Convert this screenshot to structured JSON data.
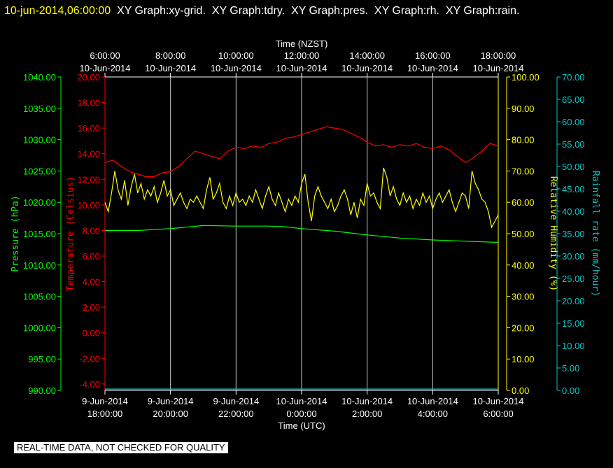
{
  "header": {
    "datetime": "10-jun-2014,06:00:00",
    "graph_labels": [
      "XY Graph:xy-grid.",
      "XY Graph:tdry.",
      "XY Graph:pres.",
      "XY Graph:rh.",
      "XY Graph:rain."
    ]
  },
  "footer": {
    "notice": "REAL-TIME DATA, NOT CHECKED FOR QUALITY"
  },
  "chart_data": {
    "type": "line",
    "top_axis": {
      "label": "Time (NZST)",
      "ticks": [
        {
          "time": "6:00:00",
          "date": "10-Jun-2014"
        },
        {
          "time": "8:00:00",
          "date": "10-Jun-2014"
        },
        {
          "time": "10:00:00",
          "date": "10-Jun-2014"
        },
        {
          "time": "12:00:00",
          "date": "10-Jun-2014"
        },
        {
          "time": "14:00:00",
          "date": "10-Jun-2014"
        },
        {
          "time": "16:00:00",
          "date": "10-Jun-2014"
        },
        {
          "time": "18:00:00",
          "date": "10-Jun-2014"
        }
      ]
    },
    "bottom_axis": {
      "label": "Time (UTC)",
      "ticks": [
        {
          "date": "9-Jun-2014",
          "time": "18:00:00"
        },
        {
          "date": "9-Jun-2014",
          "time": "20:00:00"
        },
        {
          "date": "9-Jun-2014",
          "time": "22:00:00"
        },
        {
          "date": "10-Jun-2014",
          "time": "0:00:00"
        },
        {
          "date": "10-Jun-2014",
          "time": "2:00:00"
        },
        {
          "date": "10-Jun-2014",
          "time": "4:00:00"
        },
        {
          "date": "10-Jun-2014",
          "time": "6:00:00"
        }
      ]
    },
    "x_hours": [
      0,
      2,
      4,
      6,
      8,
      10,
      12
    ],
    "vgrid_hours": [
      2,
      4,
      6,
      8,
      10
    ],
    "pressure_axis": {
      "label": "Pressure (hPa)",
      "color": "#00ff00",
      "range": [
        990,
        1040
      ],
      "ticks": [
        "990.00",
        "995.00",
        "1000.00",
        "1005.00",
        "1010.00",
        "1015.00",
        "1020.00",
        "1025.00",
        "1030.00",
        "1035.00",
        "1040.00"
      ]
    },
    "temperature_axis": {
      "label": "Temperature (Celsius)",
      "color": "#ff0000",
      "range": [
        -4.5,
        20
      ],
      "ticks": [
        "-4.00",
        "-2.00",
        "0.00",
        "2.00",
        "4.00",
        "6.00",
        "8.00",
        "10.00",
        "12.00",
        "14.00",
        "16.00",
        "18.00",
        "20.00"
      ]
    },
    "humidity_axis": {
      "label": "Relative Humidity (%)",
      "color": "#ffff00",
      "range": [
        0,
        100
      ],
      "ticks": [
        "0.00",
        "10.00",
        "20.00",
        "30.00",
        "40.00",
        "50.00",
        "60.00",
        "70.00",
        "80.00",
        "90.00",
        "100.00"
      ]
    },
    "rain_axis": {
      "label": "Rainfall rate (mm/hour)",
      "color": "#00c8c8",
      "range": [
        0,
        70
      ],
      "ticks": [
        "0.00",
        "5.00",
        "10.00",
        "15.00",
        "20.00",
        "25.00",
        "30.00",
        "35.00",
        "40.00",
        "45.00",
        "50.00",
        "55.00",
        "60.00",
        "65.00",
        "70.00"
      ]
    },
    "series": [
      {
        "name": "tdry",
        "color": "#ff0000",
        "axis": "temperature_axis",
        "points": [
          [
            0,
            13.3
          ],
          [
            0.25,
            13.5
          ],
          [
            0.5,
            13.0
          ],
          [
            0.75,
            12.6
          ],
          [
            1.0,
            12.4
          ],
          [
            1.25,
            12.2
          ],
          [
            1.5,
            12.2
          ],
          [
            1.75,
            12.5
          ],
          [
            2.0,
            12.6
          ],
          [
            2.25,
            13.0
          ],
          [
            2.5,
            13.6
          ],
          [
            2.75,
            14.2
          ],
          [
            3.0,
            14.0
          ],
          [
            3.25,
            13.8
          ],
          [
            3.5,
            13.6
          ],
          [
            3.75,
            14.2
          ],
          [
            4.0,
            14.5
          ],
          [
            4.25,
            14.4
          ],
          [
            4.5,
            14.6
          ],
          [
            4.75,
            14.5
          ],
          [
            5.0,
            14.8
          ],
          [
            5.25,
            14.9
          ],
          [
            5.5,
            15.2
          ],
          [
            5.75,
            15.3
          ],
          [
            6.0,
            15.5
          ],
          [
            6.25,
            15.7
          ],
          [
            6.5,
            15.9
          ],
          [
            6.75,
            16.1
          ],
          [
            7.0,
            16.0
          ],
          [
            7.25,
            15.9
          ],
          [
            7.5,
            15.6
          ],
          [
            7.75,
            15.3
          ],
          [
            8.0,
            14.9
          ],
          [
            8.25,
            14.6
          ],
          [
            8.5,
            14.7
          ],
          [
            8.75,
            14.5
          ],
          [
            9.0,
            14.7
          ],
          [
            9.25,
            14.6
          ],
          [
            9.5,
            14.8
          ],
          [
            9.75,
            14.5
          ],
          [
            10.0,
            14.4
          ],
          [
            10.25,
            14.6
          ],
          [
            10.5,
            14.3
          ],
          [
            10.75,
            13.8
          ],
          [
            11.0,
            13.3
          ],
          [
            11.25,
            13.7
          ],
          [
            11.5,
            14.2
          ],
          [
            11.75,
            14.8
          ],
          [
            12.0,
            14.6
          ]
        ]
      },
      {
        "name": "rh",
        "color": "#ffff00",
        "axis": "humidity_axis",
        "points": [
          [
            0,
            60
          ],
          [
            0.1,
            57
          ],
          [
            0.2,
            63
          ],
          [
            0.3,
            70
          ],
          [
            0.4,
            64
          ],
          [
            0.5,
            61
          ],
          [
            0.6,
            67
          ],
          [
            0.7,
            59
          ],
          [
            0.8,
            65
          ],
          [
            0.9,
            69
          ],
          [
            1.0,
            63
          ],
          [
            1.1,
            66
          ],
          [
            1.2,
            61
          ],
          [
            1.3,
            64
          ],
          [
            1.4,
            62
          ],
          [
            1.5,
            65
          ],
          [
            1.6,
            60
          ],
          [
            1.7,
            63
          ],
          [
            1.8,
            67
          ],
          [
            1.9,
            62
          ],
          [
            2.0,
            64
          ],
          [
            2.1,
            59
          ],
          [
            2.2,
            61
          ],
          [
            2.3,
            63
          ],
          [
            2.4,
            60
          ],
          [
            2.5,
            58
          ],
          [
            2.6,
            61
          ],
          [
            2.7,
            60
          ],
          [
            2.8,
            62
          ],
          [
            2.9,
            60
          ],
          [
            3.0,
            58
          ],
          [
            3.1,
            64
          ],
          [
            3.2,
            68
          ],
          [
            3.3,
            61
          ],
          [
            3.4,
            63
          ],
          [
            3.5,
            66
          ],
          [
            3.6,
            60
          ],
          [
            3.7,
            58
          ],
          [
            3.8,
            62
          ],
          [
            3.9,
            59
          ],
          [
            4.0,
            63
          ],
          [
            4.1,
            60
          ],
          [
            4.2,
            61
          ],
          [
            4.3,
            59
          ],
          [
            4.4,
            62
          ],
          [
            4.5,
            60
          ],
          [
            4.6,
            64
          ],
          [
            4.7,
            61
          ],
          [
            4.8,
            58
          ],
          [
            4.9,
            62
          ],
          [
            5.0,
            65
          ],
          [
            5.1,
            61
          ],
          [
            5.2,
            59
          ],
          [
            5.3,
            63
          ],
          [
            5.4,
            60
          ],
          [
            5.5,
            57
          ],
          [
            5.6,
            61
          ],
          [
            5.7,
            59
          ],
          [
            5.8,
            62
          ],
          [
            5.9,
            60
          ],
          [
            6.0,
            66
          ],
          [
            6.1,
            69
          ],
          [
            6.2,
            60
          ],
          [
            6.3,
            54
          ],
          [
            6.4,
            62
          ],
          [
            6.5,
            65
          ],
          [
            6.6,
            62
          ],
          [
            6.7,
            60
          ],
          [
            6.8,
            58
          ],
          [
            6.9,
            61
          ],
          [
            7.0,
            57
          ],
          [
            7.1,
            59
          ],
          [
            7.2,
            62
          ],
          [
            7.3,
            64
          ],
          [
            7.4,
            61
          ],
          [
            7.5,
            56
          ],
          [
            7.6,
            60
          ],
          [
            7.7,
            55
          ],
          [
            7.8,
            61
          ],
          [
            7.9,
            59
          ],
          [
            8.0,
            66
          ],
          [
            8.1,
            62
          ],
          [
            8.2,
            63
          ],
          [
            8.3,
            60
          ],
          [
            8.4,
            58
          ],
          [
            8.5,
            71
          ],
          [
            8.6,
            68
          ],
          [
            8.7,
            62
          ],
          [
            8.8,
            65
          ],
          [
            8.9,
            61
          ],
          [
            9.0,
            59
          ],
          [
            9.1,
            63
          ],
          [
            9.2,
            60
          ],
          [
            9.3,
            62
          ],
          [
            9.4,
            58
          ],
          [
            9.5,
            61
          ],
          [
            9.6,
            59
          ],
          [
            9.7,
            63
          ],
          [
            9.8,
            60
          ],
          [
            9.9,
            62
          ],
          [
            10.0,
            58
          ],
          [
            10.1,
            61
          ],
          [
            10.2,
            63
          ],
          [
            10.3,
            60
          ],
          [
            10.4,
            62
          ],
          [
            10.5,
            64
          ],
          [
            10.6,
            60
          ],
          [
            10.7,
            57
          ],
          [
            10.8,
            60
          ],
          [
            10.9,
            63
          ],
          [
            11.0,
            62
          ],
          [
            11.1,
            58
          ],
          [
            11.2,
            70
          ],
          [
            11.3,
            66
          ],
          [
            11.4,
            64
          ],
          [
            11.5,
            61
          ],
          [
            11.6,
            60
          ],
          [
            11.7,
            57
          ],
          [
            11.8,
            52
          ],
          [
            11.9,
            54
          ],
          [
            12.0,
            56
          ]
        ]
      },
      {
        "name": "pres",
        "color": "#00ff00",
        "axis": "pressure_axis",
        "points": [
          [
            0,
            1015.5
          ],
          [
            1.0,
            1015.5
          ],
          [
            2.0,
            1015.8
          ],
          [
            3.0,
            1016.3
          ],
          [
            4.0,
            1016.2
          ],
          [
            5.0,
            1016.2
          ],
          [
            5.5,
            1016.1
          ],
          [
            6.0,
            1015.8
          ],
          [
            7.0,
            1015.4
          ],
          [
            8.0,
            1014.8
          ],
          [
            9.0,
            1014.3
          ],
          [
            10.0,
            1014.0
          ],
          [
            11.0,
            1013.8
          ],
          [
            12.0,
            1013.6
          ]
        ]
      },
      {
        "name": "rain",
        "color": "#00c8c8",
        "axis": "rain_axis",
        "points": [
          [
            0,
            0.3
          ],
          [
            12.0,
            0.3
          ]
        ]
      }
    ]
  }
}
